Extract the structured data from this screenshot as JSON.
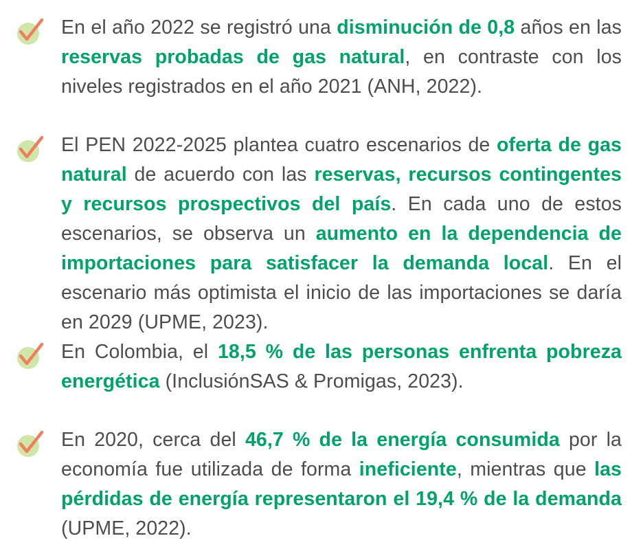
{
  "colors": {
    "text": "#4d4d4d",
    "highlight": "#00a36a",
    "check_circle": "#cfe6a8",
    "check_mark": "#f07d5c"
  },
  "items": [
    {
      "icon": "check-icon",
      "segments": [
        {
          "t": "En el año 2022 se registró una ",
          "hl": false
        },
        {
          "t": "disminución de 0,8",
          "hl": true
        },
        {
          "t": " años en las ",
          "hl": false
        },
        {
          "t": "reservas probadas de gas natural",
          "hl": true
        },
        {
          "t": ", en contraste con los niveles registrados en el año 2021 (ANH, 2022).",
          "hl": false
        }
      ]
    },
    {
      "icon": "check-icon",
      "segments": [
        {
          "t": "El PEN 2022-2025 plantea cuatro escenarios de ",
          "hl": false
        },
        {
          "t": "oferta de gas natural",
          "hl": true
        },
        {
          "t": " de acuerdo con las ",
          "hl": false
        },
        {
          "t": "reservas, recursos contingentes y recursos prospectivos del país",
          "hl": true
        },
        {
          "t": ". En cada uno de estos escenarios, se observa un ",
          "hl": false
        },
        {
          "t": "aumento en la dependencia de importaciones para satisfacer la demanda local",
          "hl": true
        },
        {
          "t": ". En el escenario más optimista el inicio de las importaciones se daría en 2029 (UPME, 2023).",
          "hl": false
        }
      ]
    },
    {
      "icon": "check-icon",
      "segments": [
        {
          "t": "En Colombia, el ",
          "hl": false
        },
        {
          "t": "18,5 % de las personas enfrenta pobreza energética",
          "hl": true
        },
        {
          "t": " (InclusiónSAS & Promigas, 2023).",
          "hl": false
        }
      ]
    },
    {
      "icon": "check-icon",
      "segments": [
        {
          "t": "En 2020, cerca del ",
          "hl": false
        },
        {
          "t": "46,7 % de la energía consumida",
          "hl": true
        },
        {
          "t": " por la economía fue utilizada de forma ",
          "hl": false
        },
        {
          "t": "ineficiente",
          "hl": true
        },
        {
          "t": ", mientras que ",
          "hl": false
        },
        {
          "t": "las pérdidas de energía representaron el 19,4 % de la demanda",
          "hl": true
        },
        {
          "t": " (UPME, 2022).",
          "hl": false
        }
      ]
    }
  ]
}
